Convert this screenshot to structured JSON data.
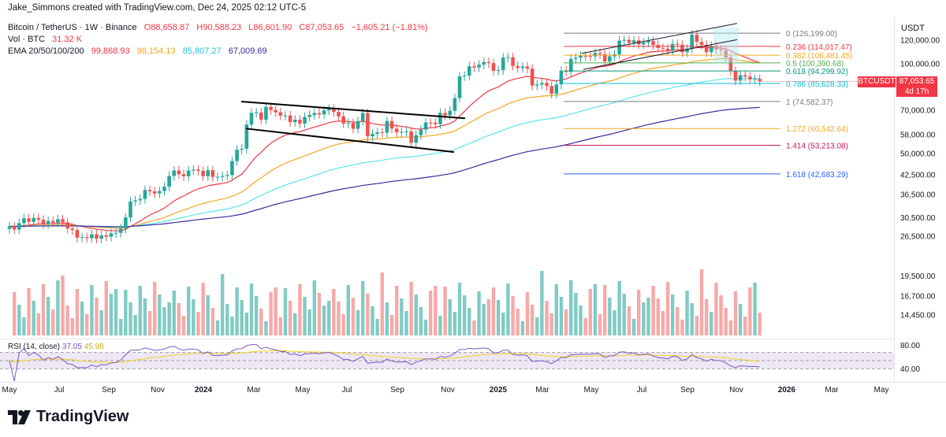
{
  "header": {
    "credit": "Jake_Simmons created with TradingView.com, Dec 24, 2025 02:12 UTC-5",
    "symbol": "Bitcoin / TetherUS · 1W · Binance",
    "open": "O88,658.87",
    "high": "H90,588.23",
    "low": "L86,601.90",
    "close": "C87,053.65",
    "change": "−1,605.21 (−1.81%)",
    "vol_label": "Vol · BTC",
    "vol_value": "31.32 K",
    "ema_label": "EMA 20/50/100/200",
    "ema20": "99,868.93",
    "ema50": "98,154.13",
    "ema100": "85,807.27",
    "ema200": "67,009.69"
  },
  "colors": {
    "up": "#26a69a",
    "down": "#ef5350",
    "ema20": "#f23645",
    "ema50": "#f5a623",
    "ema100": "#5ae4ef",
    "ema200": "#3a2a9e",
    "rsi": "#7e57c2",
    "rsi_ma": "#f5d11c"
  },
  "axis": {
    "currency": "USDT",
    "price_ticks": [
      "120,000.00",
      "100,000.00",
      "70,000.00",
      "58,000.00",
      "50,000.00",
      "42,500.00",
      "36,500.00",
      "30,500.00",
      "26,500.00",
      "19,500.00",
      "16,700.00",
      "14,450.00"
    ],
    "rsi_ticks": [
      "80.00",
      "40.00"
    ],
    "time_ticks": [
      "May",
      "Jul",
      "Sep",
      "Nov",
      "2024",
      "Mar",
      "May",
      "Jul",
      "Sep",
      "Nov",
      "2025",
      "Mar",
      "May",
      "Jul",
      "Sep",
      "Nov",
      "2026",
      "Mar",
      "May"
    ]
  },
  "price_tag": {
    "symbol": "BTCUSDT",
    "price": "87,053.65",
    "countdown": "4d 17h"
  },
  "fib_levels": [
    {
      "label": "0 (126,199.00)",
      "color": "#787b86"
    },
    {
      "label": "0.236 (114,017.47)",
      "color": "#f23645"
    },
    {
      "label": "0.382 (106,481.45)",
      "color": "#f5a623"
    },
    {
      "label": "0.5 (100,390.68)",
      "color": "#4caf50"
    },
    {
      "label": "0.618 (94,299.92)",
      "color": "#089981"
    },
    {
      "label": "0.786 (85,628.33)",
      "color": "#00bcd4"
    },
    {
      "label": "1 (74,582.37)",
      "color": "#787b86"
    },
    {
      "label": "1.272 (60,542.64)",
      "color": "#f5a623"
    },
    {
      "label": "1.414 (53,213.08)",
      "color": "#c2185b"
    },
    {
      "label": "1.618 (42,683.29)",
      "color": "#2962ff"
    }
  ],
  "rsi": {
    "label": "RSI (14, close)",
    "value": "37.05",
    "ma": "45.98"
  },
  "chart_data": {
    "type": "candlestick",
    "interval": "1W",
    "y_scale": "log",
    "ylim": [
      12000,
      140000
    ],
    "weekly_close_approx": [
      28500,
      27800,
      29200,
      30300,
      29500,
      30400,
      30000,
      29000,
      29700,
      29300,
      30100,
      29400,
      28000,
      27700,
      26100,
      26200,
      26000,
      26800,
      25900,
      26600,
      26300,
      27000,
      27100,
      28000,
      30500,
      34500,
      34800,
      35200,
      37700,
      37300,
      36700,
      37400,
      38700,
      42000,
      43800,
      42600,
      41900,
      43800,
      44100,
      43700,
      41900,
      43900,
      41700,
      41700,
      42000,
      42300,
      47100,
      51400,
      51800,
      62400,
      68300,
      68500,
      64800,
      71500,
      69800,
      68600,
      66800,
      66900,
      63600,
      64800,
      62900,
      66200,
      67200,
      68200,
      67500,
      69600,
      70500,
      68800,
      66500,
      62900,
      63200,
      60400,
      64100,
      68200,
      57000,
      58100,
      58800,
      58600,
      64100,
      60500,
      58800,
      59000,
      59200,
      54200,
      57500,
      60000,
      63400,
      63300,
      62600,
      68300,
      67000,
      69400,
      76500,
      90500,
      91000,
      97800,
      96900,
      99000,
      101000,
      100200,
      94400,
      94900,
      104500,
      104800,
      98000,
      96500,
      97600,
      96000,
      84300,
      85000,
      86000,
      84000,
      79100,
      85000,
      94600,
      93700,
      103500,
      104400,
      106000,
      105700,
      105500,
      108300,
      107300,
      101500,
      105600,
      107200,
      119100,
      119800,
      117300,
      119400,
      115800,
      117500,
      118800,
      115200,
      112600,
      112000,
      110500,
      116200,
      115400,
      109000,
      112000,
      124700,
      118000,
      115300,
      109000,
      114500,
      111300,
      110500,
      104700,
      94300,
      87600,
      91300,
      90300,
      88400,
      88700,
      87050
    ],
    "ema_20_last": 99868.93,
    "ema_50_last": 98154.13,
    "ema_100_last": 85807.27,
    "ema_200_last": 67009.69,
    "fibonacci": [
      [
        0,
        126199.0
      ],
      [
        0.236,
        114017.47
      ],
      [
        0.382,
        106481.45
      ],
      [
        0.5,
        100390.68
      ],
      [
        0.618,
        94299.92
      ],
      [
        0.786,
        85628.33
      ],
      [
        1,
        74582.37
      ],
      [
        1.272,
        60542.64
      ],
      [
        1.414,
        53213.08
      ],
      [
        1.618,
        42683.29
      ]
    ],
    "rsi_value": 37.05,
    "rsi_ma_value": 45.98,
    "volume_last": "31.32 K"
  },
  "brand": {
    "name": "TradingView"
  }
}
